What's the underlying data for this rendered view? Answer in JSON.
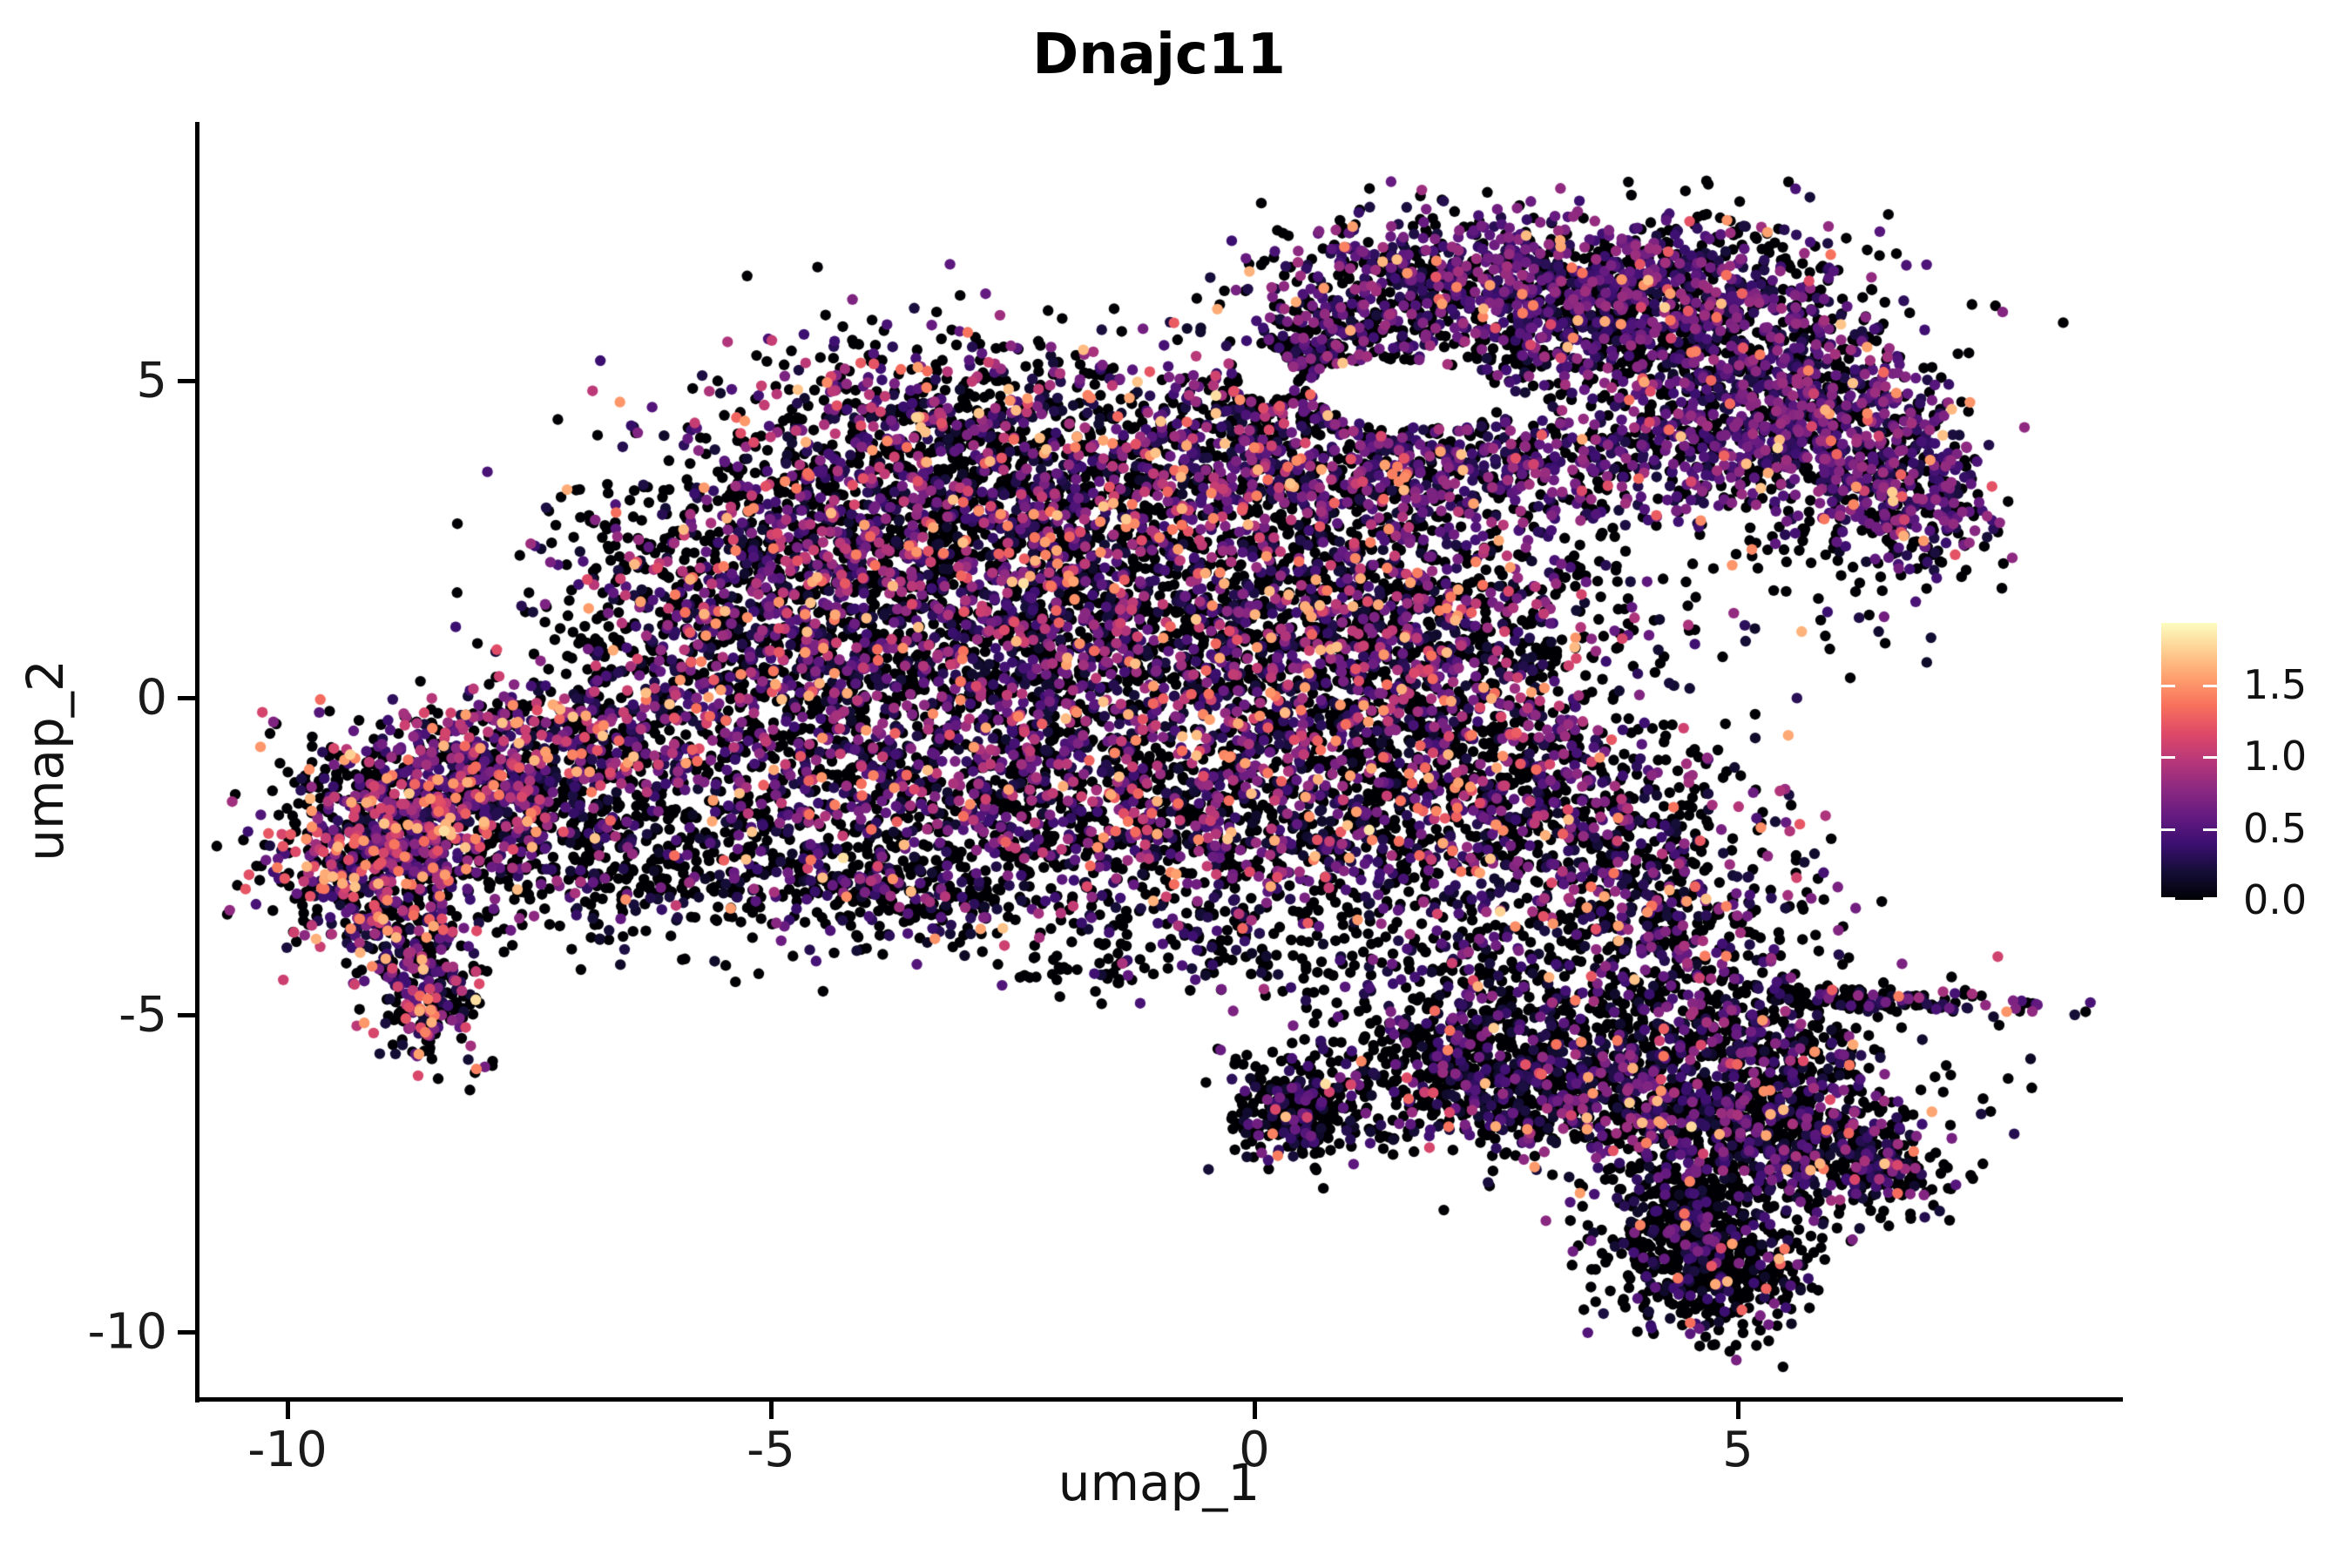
{
  "chart_data": {
    "type": "scatter",
    "title": "Dnajc11",
    "xlabel": "umap_1",
    "ylabel": "umap_2",
    "xlim": [
      -10.94,
      8.95
    ],
    "ylim": [
      -11.08,
      9.08
    ],
    "grid": false,
    "x_ticks": [
      {
        "v": -10,
        "label": "-10"
      },
      {
        "v": -5,
        "label": "-5"
      },
      {
        "v": 0,
        "label": "0"
      },
      {
        "v": 5,
        "label": "5"
      }
    ],
    "y_ticks": [
      {
        "v": 5,
        "label": "5"
      },
      {
        "v": 0,
        "label": "0"
      },
      {
        "v": -5,
        "label": "-5"
      },
      {
        "v": -10,
        "label": "-10"
      }
    ],
    "colorbar": {
      "position": "right",
      "vmin": 0.0,
      "vmax": 1.93,
      "ticks": [
        {
          "v": 1.5,
          "label": "1.5"
        },
        {
          "v": 1.0,
          "label": "1.0"
        },
        {
          "v": 0.5,
          "label": "0.5"
        },
        {
          "v": 0.0,
          "label": "0.0"
        }
      ],
      "colormap": "magma",
      "stops": [
        "#000004",
        "#140e36",
        "#3b0f70",
        "#641a80",
        "#8c2981",
        "#b73779",
        "#de4968",
        "#f7705c",
        "#fe9f6d",
        "#fecf92",
        "#fcfdbf"
      ]
    },
    "point_radius_px": 6.2,
    "seed": 42,
    "profiles": {
      "mixed": {
        "p0": 0.53,
        "pHi": 0.065,
        "base": 0.15,
        "range": 0.9,
        "exp": 1.5
      },
      "island": {
        "p0": 0.46,
        "pHi": 0.11,
        "base": 0.18,
        "range": 0.95,
        "exp": 1.4
      },
      "purple": {
        "p0": 0.42,
        "pHi": 0.03,
        "base": 0.2,
        "range": 0.68,
        "exp": 1.3
      },
      "dark": {
        "p0": 0.62,
        "pHi": 0.028,
        "base": 0.15,
        "range": 0.75,
        "exp": 1.6
      },
      "darkest": {
        "p0": 0.72,
        "pHi": 0.015,
        "base": 0.12,
        "range": 0.6,
        "exp": 1.7
      }
    },
    "clusters": [
      {
        "c": [
          -3.3,
          3.5
        ],
        "s": [
          1.2,
          0.85
        ],
        "rot": -35,
        "n": 850,
        "p": "mixed"
      },
      {
        "c": [
          -4.5,
          1.3
        ],
        "s": [
          1.15,
          1.15
        ],
        "rot": 0,
        "n": 850,
        "p": "mixed"
      },
      {
        "c": [
          -2.5,
          0.8
        ],
        "s": [
          1.35,
          1.35
        ],
        "rot": 0,
        "n": 1050,
        "p": "mixed"
      },
      {
        "c": [
          -0.7,
          2.0
        ],
        "s": [
          1.15,
          1.25
        ],
        "rot": 0,
        "n": 850,
        "p": "mixed"
      },
      {
        "c": [
          -2.0,
          4.3
        ],
        "s": [
          1.5,
          0.65
        ],
        "rot": -12,
        "n": 480,
        "p": "mixed"
      },
      {
        "c": [
          -5.4,
          -0.2
        ],
        "s": [
          1.0,
          0.95
        ],
        "rot": 0,
        "n": 430,
        "p": "mixed"
      },
      {
        "c": [
          -3.8,
          -1.6
        ],
        "s": [
          1.35,
          0.8
        ],
        "rot": -10,
        "n": 480,
        "p": "mixed"
      },
      {
        "c": [
          -1.3,
          -1.5
        ],
        "s": [
          1.25,
          1.0
        ],
        "rot": 0,
        "n": 650,
        "p": "mixed"
      },
      {
        "c": [
          0.8,
          -0.2
        ],
        "s": [
          1.15,
          1.2
        ],
        "rot": 0,
        "n": 760,
        "p": "mixed"
      },
      {
        "c": [
          -6.0,
          1.8
        ],
        "s": [
          0.8,
          0.95
        ],
        "rot": 0,
        "n": 260,
        "p": "mixed"
      },
      {
        "c": [
          2.0,
          0.9
        ],
        "s": [
          1.0,
          1.0
        ],
        "rot": 0,
        "n": 480,
        "p": "mixed"
      },
      {
        "c": [
          2.4,
          -1.0
        ],
        "s": [
          1.05,
          1.05
        ],
        "rot": 0,
        "n": 560,
        "p": "mixed"
      },
      {
        "c": [
          3.4,
          -2.4
        ],
        "s": [
          1.0,
          0.95
        ],
        "rot": 0,
        "n": 520,
        "p": "mixed"
      },
      {
        "c": [
          1.3,
          2.6
        ],
        "s": [
          0.9,
          1.0
        ],
        "rot": 0,
        "n": 420,
        "p": "mixed"
      },
      {
        "c": [
          -4.6,
          3.0
        ],
        "s": [
          0.9,
          0.55
        ],
        "rot": -35,
        "n": 150,
        "p": "mixed"
      },
      {
        "c": [
          -0.15,
          4.2
        ],
        "s": [
          0.55,
          0.7
        ],
        "rot": 0,
        "n": 240,
        "p": "mixed"
      },
      {
        "c": [
          0.4,
          -2.5
        ],
        "s": [
          1.15,
          0.85
        ],
        "rot": 0,
        "n": 420,
        "p": "dark"
      },
      {
        "c": [
          4.3,
          -3.7
        ],
        "s": [
          0.85,
          0.75
        ],
        "rot": -30,
        "n": 330,
        "p": "dark"
      },
      {
        "c": [
          -3.7,
          -3.0
        ],
        "s": [
          0.8,
          0.45
        ],
        "rot": 0,
        "n": 200,
        "p": "dark"
      },
      {
        "c": [
          -4.8,
          -2.7
        ],
        "s": [
          1.4,
          0.55
        ],
        "rot": -10,
        "n": 240,
        "p": "darkest"
      },
      {
        "c": [
          2.2,
          3.7
        ],
        "s": [
          1.1,
          0.5
        ],
        "rot": -10,
        "n": 480,
        "p": "purple"
      },
      {
        "c": [
          -8.8,
          -1.9
        ],
        "s": [
          0.72,
          0.8
        ],
        "rot": -20,
        "n": 650,
        "p": "island"
      },
      {
        "c": [
          -8.0,
          -1.2
        ],
        "s": [
          0.6,
          0.55
        ],
        "rot": 0,
        "n": 330,
        "p": "island"
      },
      {
        "c": [
          -9.3,
          -2.8
        ],
        "s": [
          0.45,
          0.55
        ],
        "rot": 0,
        "n": 280,
        "p": "island"
      },
      {
        "c": [
          -8.6,
          -4.4
        ],
        "s": [
          0.3,
          0.7
        ],
        "rot": 8,
        "n": 310,
        "p": "island"
      },
      {
        "c": [
          -7.0,
          -0.6
        ],
        "s": [
          0.7,
          0.55
        ],
        "rot": 0,
        "n": 230,
        "p": "island"
      },
      {
        "c": [
          -7.3,
          -2.2
        ],
        "s": [
          0.6,
          0.75
        ],
        "rot": 0,
        "n": 240,
        "p": "dark"
      },
      {
        "c": [
          -6.3,
          -2.5
        ],
        "s": [
          0.8,
          0.75
        ],
        "rot": 0,
        "n": 200,
        "p": "darkest"
      },
      {
        "c": [
          1.0,
          6.0
        ],
        "s": [
          0.6,
          0.8
        ],
        "rot": -30,
        "n": 350,
        "p": "purple"
      },
      {
        "c": [
          2.6,
          6.6
        ],
        "s": [
          1.0,
          0.55
        ],
        "rot": -8,
        "n": 560,
        "p": "purple"
      },
      {
        "c": [
          4.2,
          6.4
        ],
        "s": [
          0.9,
          0.6
        ],
        "rot": 10,
        "n": 560,
        "p": "purple"
      },
      {
        "c": [
          5.3,
          5.0
        ],
        "s": [
          0.85,
          0.95
        ],
        "rot": 20,
        "n": 650,
        "p": "purple"
      },
      {
        "c": [
          6.2,
          4.0
        ],
        "s": [
          0.55,
          0.8
        ],
        "rot": 15,
        "n": 400,
        "p": "purple"
      },
      {
        "c": [
          6.9,
          3.2
        ],
        "s": [
          0.4,
          0.7
        ],
        "rot": 10,
        "n": 240,
        "p": "purple"
      },
      {
        "c": [
          4.6,
          3.9
        ],
        "s": [
          0.8,
          0.5
        ],
        "rot": 10,
        "n": 280,
        "p": "purple"
      },
      {
        "c": [
          3.3,
          5.5
        ],
        "s": [
          1.3,
          0.55
        ],
        "rot": 0,
        "n": 420,
        "p": "dark"
      },
      {
        "c": [
          0.45,
          5.2
        ],
        "s": [
          0.35,
          0.5
        ],
        "rot": 0,
        "n": 130,
        "p": "dark"
      },
      {
        "c": [
          3.4,
          -5.9
        ],
        "s": [
          1.0,
          0.72
        ],
        "rot": -15,
        "n": 650,
        "p": "dark"
      },
      {
        "c": [
          4.7,
          -6.6
        ],
        "s": [
          0.9,
          0.68
        ],
        "rot": -10,
        "n": 600,
        "p": "dark"
      },
      {
        "c": [
          5.8,
          -7.1
        ],
        "s": [
          0.65,
          0.5
        ],
        "rot": -15,
        "n": 350,
        "p": "dark"
      },
      {
        "c": [
          6.55,
          -7.4
        ],
        "s": [
          0.35,
          0.3
        ],
        "rot": -10,
        "n": 110,
        "p": "dark"
      },
      {
        "c": [
          2.5,
          -6.3
        ],
        "s": [
          0.55,
          0.45
        ],
        "rot": 0,
        "n": 240,
        "p": "dark"
      },
      {
        "c": [
          6.55,
          -4.78
        ],
        "s": [
          0.85,
          0.1
        ],
        "rot": -4,
        "n": 140,
        "p": "dark"
      },
      {
        "c": [
          5.35,
          -5.4
        ],
        "s": [
          0.45,
          0.35
        ],
        "rot": -35,
        "n": 130,
        "p": "dark"
      },
      {
        "c": [
          4.75,
          -8.9
        ],
        "s": [
          0.5,
          0.6
        ],
        "rot": 0,
        "n": 520,
        "p": "darkest"
      },
      {
        "c": [
          4.45,
          -7.9
        ],
        "s": [
          0.3,
          0.5
        ],
        "rot": 0,
        "n": 170,
        "p": "darkest"
      },
      {
        "c": [
          2.0,
          -5.4
        ],
        "s": [
          0.5,
          0.4
        ],
        "rot": 0,
        "n": 140,
        "p": "darkest"
      },
      {
        "c": [
          4.2,
          -5.1
        ],
        "s": [
          1.5,
          0.6
        ],
        "rot": -10,
        "n": 180,
        "p": "darkest"
      },
      {
        "c": [
          0.45,
          -6.6
        ],
        "s": [
          0.32,
          0.33
        ],
        "rot": 0,
        "n": 280,
        "p": "darkest"
      },
      {
        "c": [
          0.85,
          -6.05
        ],
        "s": [
          0.7,
          0.38
        ],
        "rot": -20,
        "n": 110,
        "p": "darkest"
      },
      {
        "c": [
          -1.6,
          -4.35
        ],
        "s": [
          0.55,
          0.1
        ],
        "rot": 0,
        "n": 25,
        "p": "darkest"
      },
      {
        "c": [
          0.3,
          -4.3
        ],
        "s": [
          0.9,
          0.4
        ],
        "rot": 0,
        "n": 55,
        "p": "darkest"
      },
      {
        "c": [
          -0.9,
          -3.6
        ],
        "s": [
          0.8,
          0.4
        ],
        "rot": 0,
        "n": 70,
        "p": "darkest"
      },
      {
        "c": [
          6.1,
          2.2
        ],
        "s": [
          0.5,
          0.7
        ],
        "rot": 15,
        "n": 55,
        "p": "darkest"
      },
      {
        "c": [
          3.8,
          1.9
        ],
        "s": [
          1.3,
          0.7
        ],
        "rot": 0,
        "n": 50,
        "p": "darkest"
      },
      {
        "c": [
          2.2,
          -4.3
        ],
        "s": [
          0.8,
          0.55
        ],
        "rot": 0,
        "n": 100,
        "p": "darkest"
      }
    ],
    "holes": [
      {
        "c": [
          1.55,
          4.8
        ],
        "r": [
          1.0,
          0.52
        ],
        "rot": -8
      },
      {
        "c": [
          0.1,
          5.15
        ],
        "r": [
          0.3,
          0.45
        ],
        "rot": 20
      }
    ],
    "special_points": [
      {
        "x": 7.78,
        "y": -4.95,
        "v": 1.5
      }
    ]
  }
}
